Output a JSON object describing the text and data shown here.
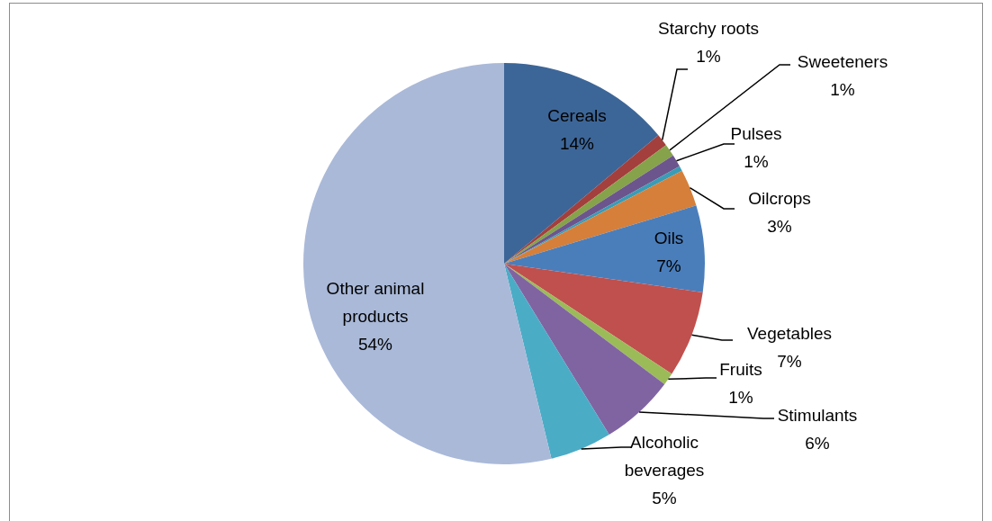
{
  "chart_data": {
    "type": "pie",
    "categories": [
      "Cereals",
      "Starchy roots",
      "Sweeteners",
      "Pulses",
      null,
      "Oilcrops",
      "Oils",
      "Vegetables",
      "Fruits",
      "Stimulants",
      "Alcoholic beverages",
      "Other animal products"
    ],
    "values": [
      14,
      1,
      1,
      1,
      0.4,
      3,
      7,
      7,
      1,
      6,
      5,
      54
    ],
    "value_labels": [
      "14%",
      "1%",
      "1%",
      "1%",
      null,
      "3%",
      "7%",
      "7%",
      "1%",
      "6%",
      "5%",
      "54%"
    ],
    "colors": [
      "#3d6698",
      "#a33f3c",
      "#86a24a",
      "#6c558c",
      "#3a9cb5",
      "#d57f3a",
      "#4a7ebb",
      "#c0504d",
      "#9bbb59",
      "#8064a2",
      "#4bacc6",
      "#aab9d8"
    ],
    "legend": false
  }
}
